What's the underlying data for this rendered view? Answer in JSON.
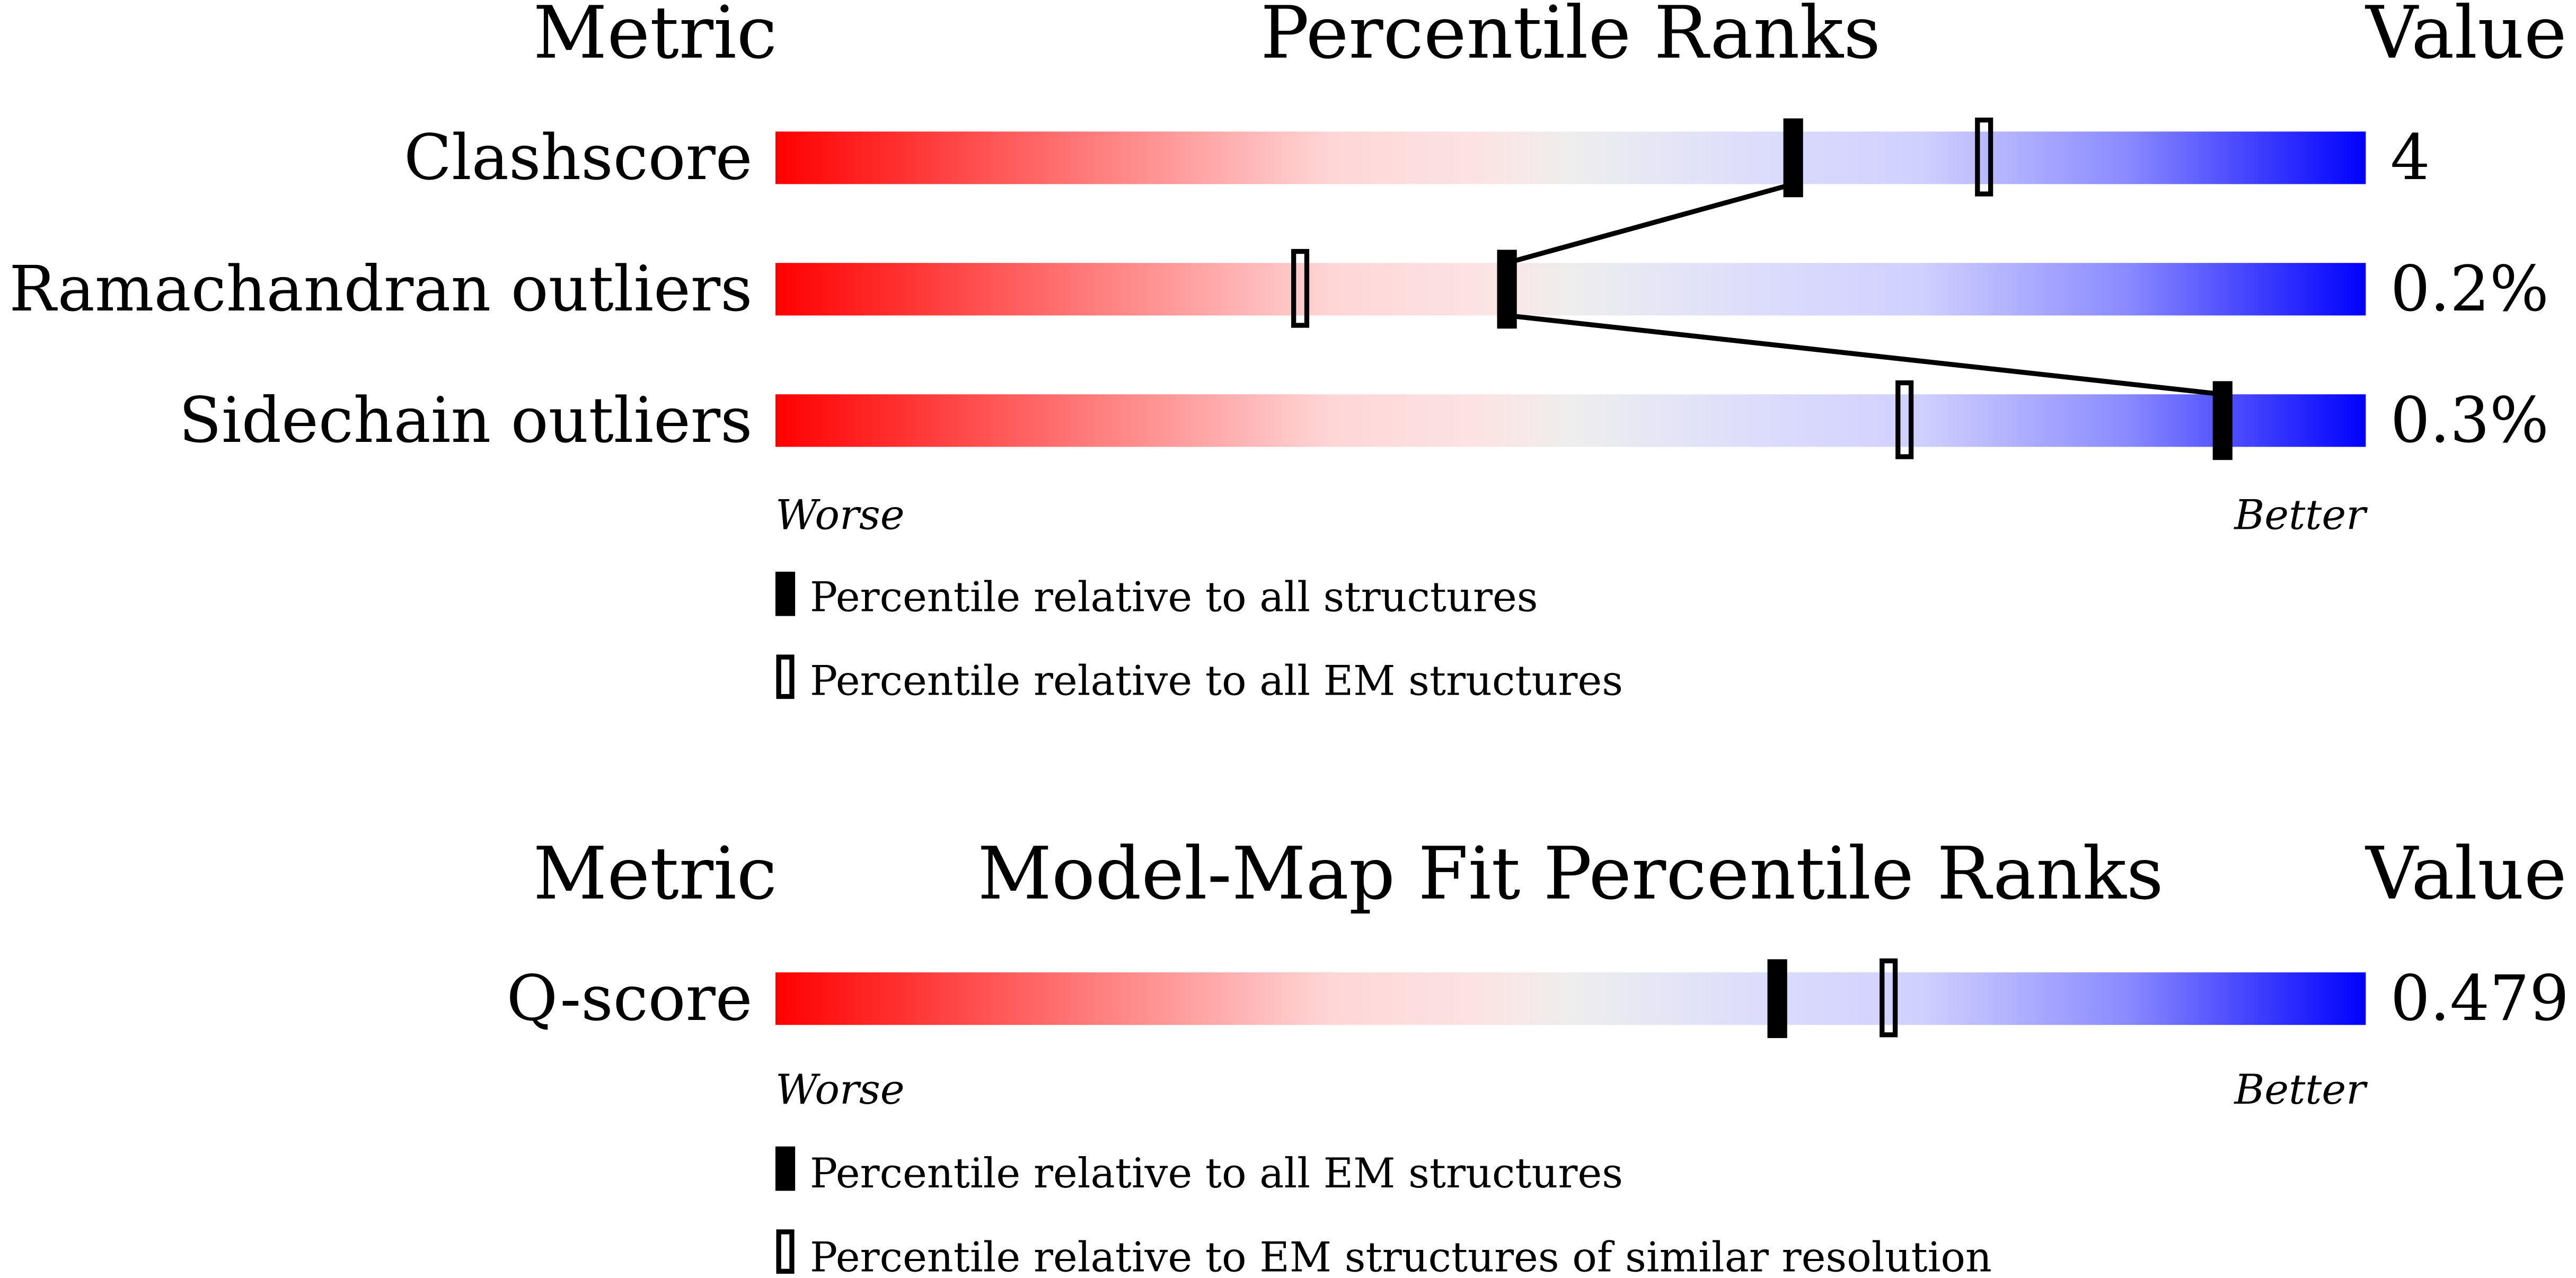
{
  "chart_data": [
    {
      "type": "percentile-slider",
      "headers": {
        "metric": "Metric",
        "title": "Percentile Ranks",
        "value": "Value"
      },
      "xlim": [
        0,
        100
      ],
      "axis_labels": {
        "worse": "Worse",
        "better": "Better"
      },
      "rows": [
        {
          "metric": "Clashscore",
          "value": "4",
          "percentile_all": 64,
          "percentile_subset": 76
        },
        {
          "metric": "Ramachandran outliers",
          "value": "0.2%",
          "percentile_all": 46,
          "percentile_subset": 33
        },
        {
          "metric": "Sidechain outliers",
          "value": "0.3%",
          "percentile_all": 91,
          "percentile_subset": 71
        }
      ],
      "legend": {
        "filled": "Percentile relative to all structures",
        "open": "Percentile relative to all EM structures"
      }
    },
    {
      "type": "percentile-slider",
      "headers": {
        "metric": "Metric",
        "title": "Model-Map Fit Percentile Ranks",
        "value": "Value"
      },
      "xlim": [
        0,
        100
      ],
      "axis_labels": {
        "worse": "Worse",
        "better": "Better"
      },
      "rows": [
        {
          "metric": "Q-score",
          "value": "0.479",
          "percentile_all": 63,
          "percentile_subset": 70
        }
      ],
      "legend": {
        "filled": "Percentile relative to all EM structures",
        "open": "Percentile relative to EM structures of similar resolution"
      }
    }
  ],
  "colors": {
    "worse": "#ff0000",
    "middle": "#eeeeee",
    "better": "#0000ff",
    "marker": "#000000"
  }
}
